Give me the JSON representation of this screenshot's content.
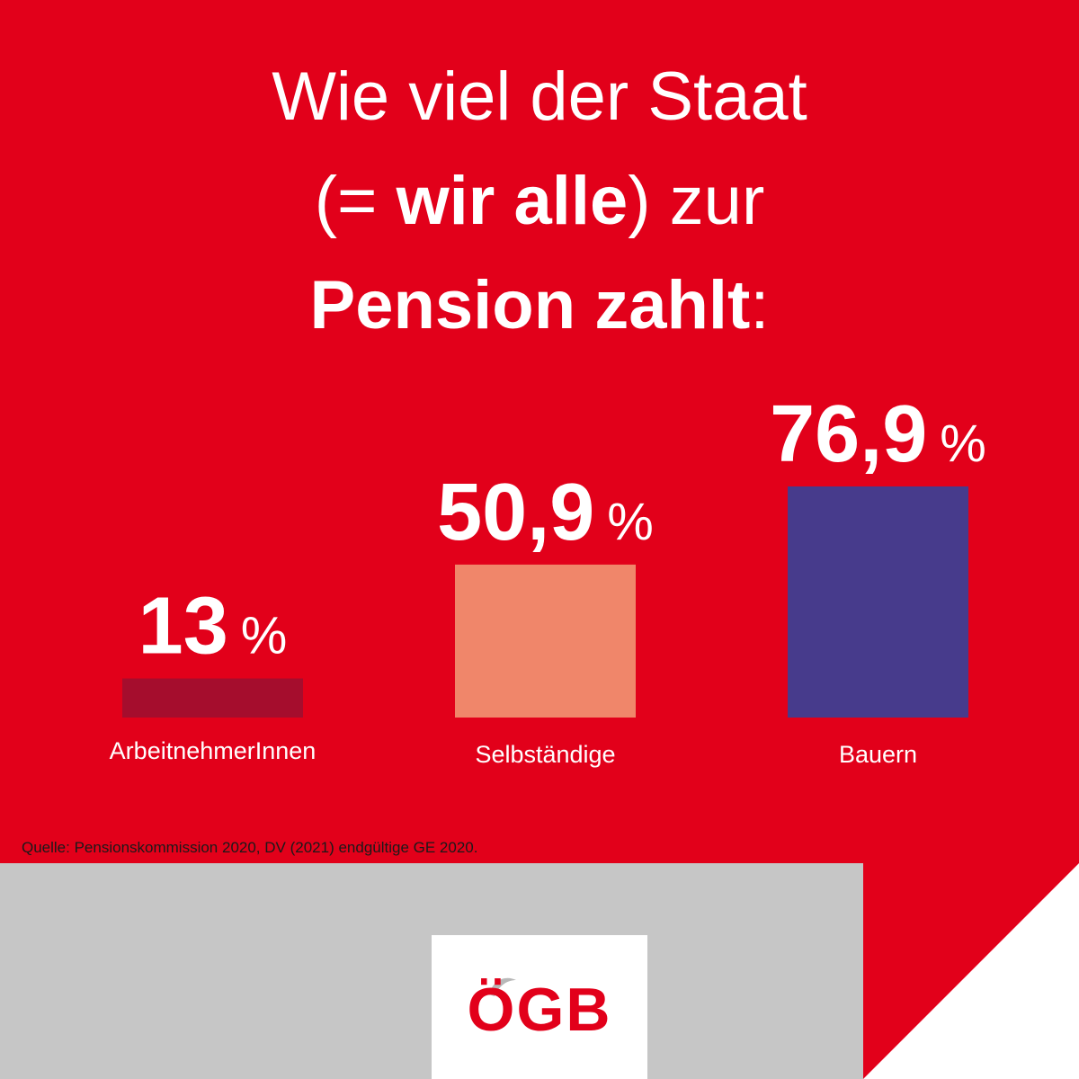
{
  "title": {
    "line1": "Wie viel der Staat",
    "line2_pre": "(= ",
    "line2_bold": "wir alle",
    "line2_post": ") zur",
    "line3_bold": "Pension zahlt",
    "line3_post": ":"
  },
  "chart_data": {
    "type": "bar",
    "categories": [
      "ArbeitnehmerInnen",
      "Selbständige",
      "Bauern"
    ],
    "values": [
      13,
      50.9,
      76.9
    ],
    "value_labels": [
      "13",
      "50,9",
      "76,9"
    ],
    "unit": "%",
    "colors": [
      "#a50d2d",
      "#f0866a",
      "#473b8c"
    ],
    "ylim": [
      0,
      76.9
    ],
    "grid": false,
    "legend": "none"
  },
  "source": "Quelle: Pensionskommission 2020, DV (2021) endgültige GE 2020.",
  "logo": {
    "text": "ÖGB"
  },
  "colors": {
    "background": "#e2001a",
    "panel": "#c6c6c6",
    "corner": "#ffffff"
  }
}
